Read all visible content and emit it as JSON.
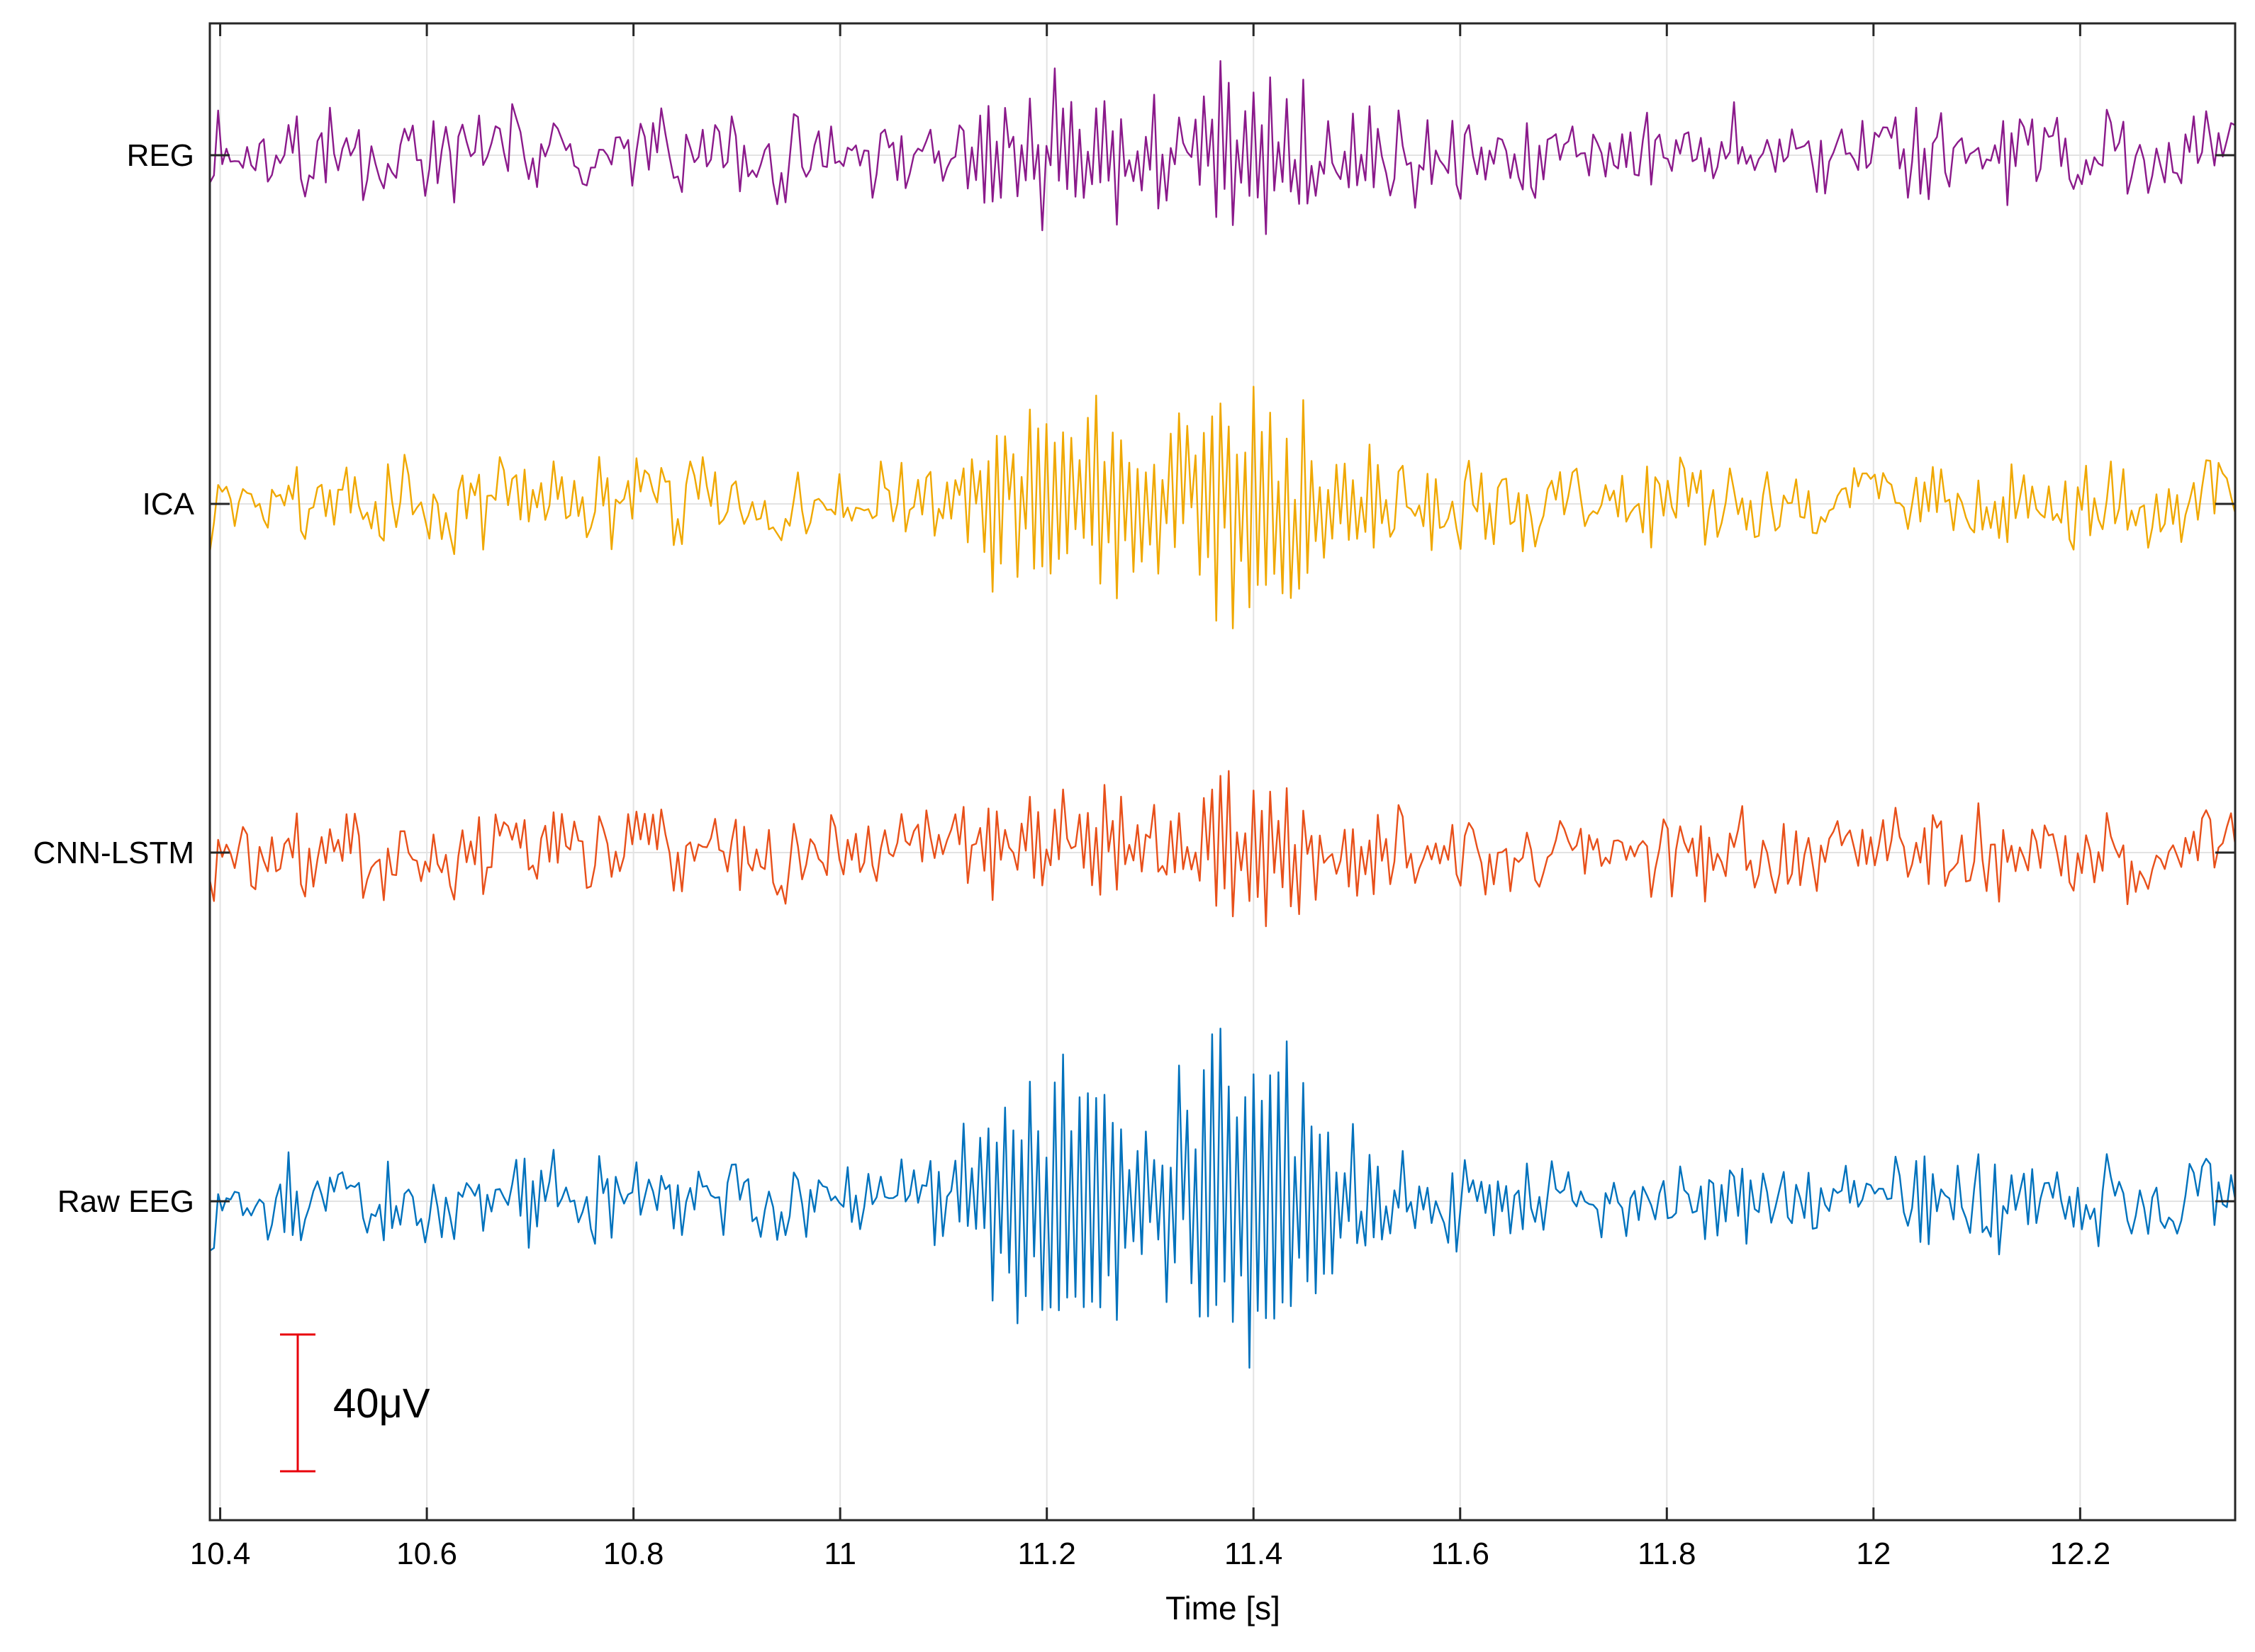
{
  "chart_data": {
    "type": "line",
    "title": "",
    "xlabel": "Time [s]",
    "ylabel": "",
    "xlim": [
      10.39,
      12.35
    ],
    "x_ticks": [
      10.4,
      10.6,
      10.8,
      11,
      11.2,
      11.4,
      11.6,
      11.8,
      12,
      12.2
    ],
    "x_tick_labels": [
      "10.4",
      "10.6",
      "10.8",
      "11",
      "11.2",
      "11.4",
      "11.6",
      "11.8",
      "12",
      "12.2"
    ],
    "grid": true,
    "legend": "none",
    "scale_bar": {
      "label": "40μV",
      "value_uV": 40,
      "color": "#e8000b"
    },
    "series": [
      {
        "name": "REG",
        "color": "#8b1a8b",
        "seed": 11,
        "base_amp": 13,
        "burst_amp": 16
      },
      {
        "name": "ICA",
        "color": "#f0a800",
        "seed": 23,
        "base_amp": 13,
        "burst_amp": 26
      },
      {
        "name": "CNN-LSTM",
        "color": "#e8501a",
        "seed": 37,
        "base_amp": 13,
        "burst_amp": 14
      },
      {
        "name": "Raw EEG",
        "color": "#0072bd",
        "seed": 53,
        "base_amp": 13,
        "burst_amp": 40
      }
    ]
  }
}
